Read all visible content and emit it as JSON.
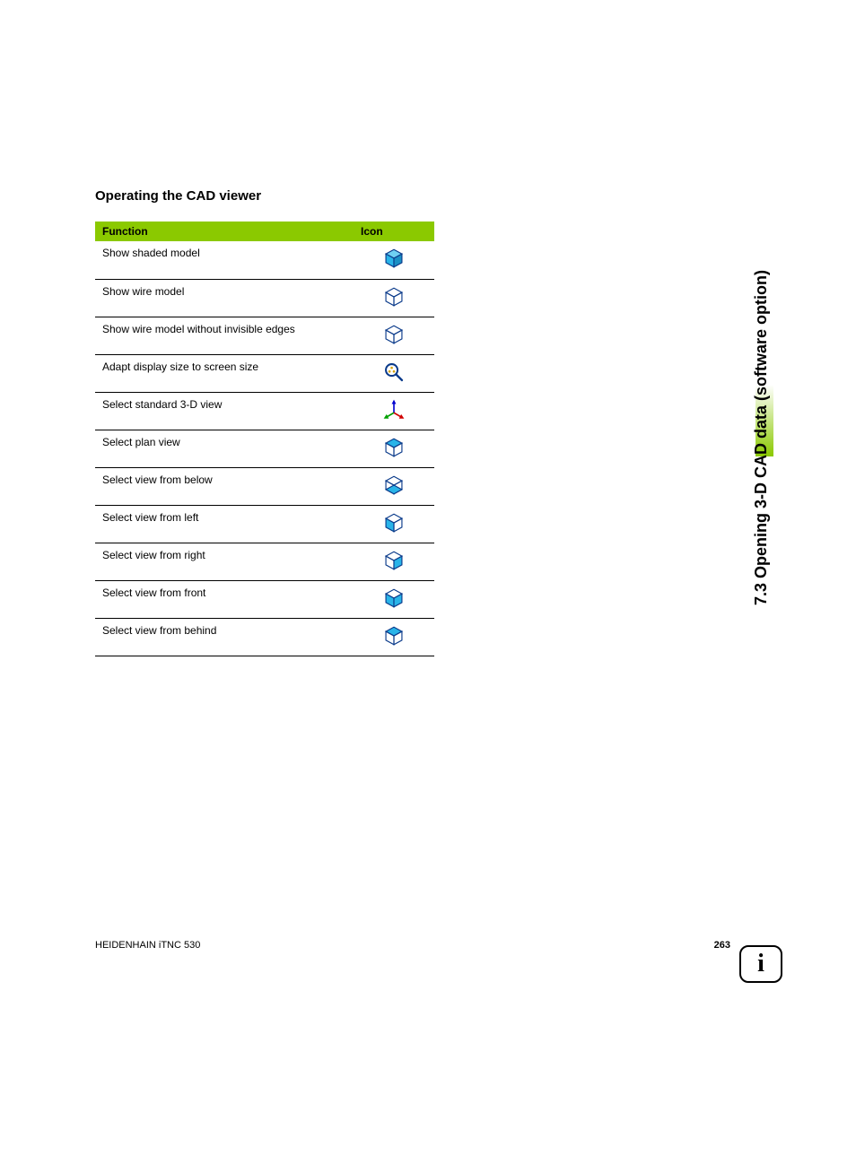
{
  "title": "Operating the CAD viewer",
  "columns": {
    "func": "Function",
    "icon": "Icon"
  },
  "rows": [
    {
      "label": "Show shaded model",
      "icon": "cube-shaded"
    },
    {
      "label": "Show wire model",
      "icon": "cube-wire"
    },
    {
      "label": "Show wire model without invisible edges",
      "icon": "cube-wire-front"
    },
    {
      "label": "Adapt display size to screen size",
      "icon": "magnify-fit"
    },
    {
      "label": "Select standard 3-D view",
      "icon": "axes-3d"
    },
    {
      "label": "Select plan view",
      "icon": "cube-top"
    },
    {
      "label": "Select view from below",
      "icon": "cube-bottom"
    },
    {
      "label": "Select view from left",
      "icon": "cube-left"
    },
    {
      "label": "Select view from right",
      "icon": "cube-right"
    },
    {
      "label": "Select view from front",
      "icon": "cube-front"
    },
    {
      "label": "Select view from behind",
      "icon": "cube-back"
    }
  ],
  "side_title": "7.3 Opening 3-D CAD data (software option)",
  "footer_left": "HEIDENHAIN iTNC 530",
  "footer_page": "263",
  "info_glyph": "i",
  "colors": {
    "accent": "#8bc900",
    "cube_fill": "#29b4e8",
    "cube_stroke": "#0a3a8a",
    "magnify": "#0a3a8a",
    "magnify_dot": "#d4a000",
    "axis_x": "#d00000",
    "axis_y": "#00a000",
    "axis_z": "#0000d0"
  }
}
